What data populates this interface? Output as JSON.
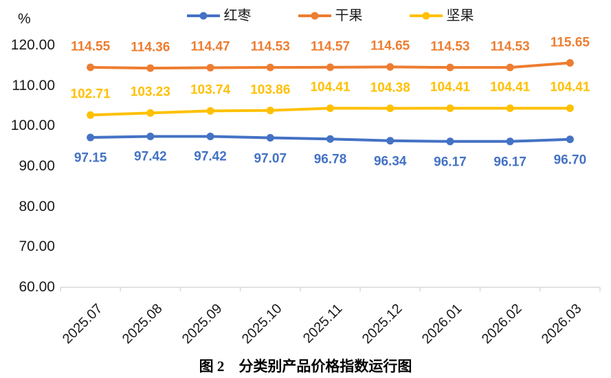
{
  "chart_data": {
    "type": "line",
    "unit_label": "%",
    "categories": [
      "2025.07",
      "2025.08",
      "2025.09",
      "2025.10",
      "2025.11",
      "2025.12",
      "2026.01",
      "2026.02",
      "2026.03"
    ],
    "series": [
      {
        "name": "红枣",
        "color": "#4472C4",
        "label_position": "below",
        "values": [
          97.15,
          97.42,
          97.42,
          97.07,
          96.78,
          96.34,
          96.17,
          96.17,
          96.7
        ]
      },
      {
        "name": "干果",
        "color": "#ED7D31",
        "label_position": "above",
        "values": [
          114.55,
          114.36,
          114.47,
          114.53,
          114.57,
          114.65,
          114.53,
          114.53,
          115.65
        ]
      },
      {
        "name": "坚果",
        "color": "#FFC000",
        "label_position": "above",
        "values": [
          102.71,
          103.23,
          103.74,
          103.86,
          104.41,
          104.38,
          104.41,
          104.41,
          104.41
        ]
      }
    ],
    "yticks": [
      120,
      110,
      100,
      90,
      80,
      70,
      60
    ],
    "ylim": [
      60,
      120
    ],
    "grid": false,
    "legend_position": "top",
    "axis_color": "#D9D9D9",
    "caption": "图 2　分类别产品价格指数运行图"
  }
}
